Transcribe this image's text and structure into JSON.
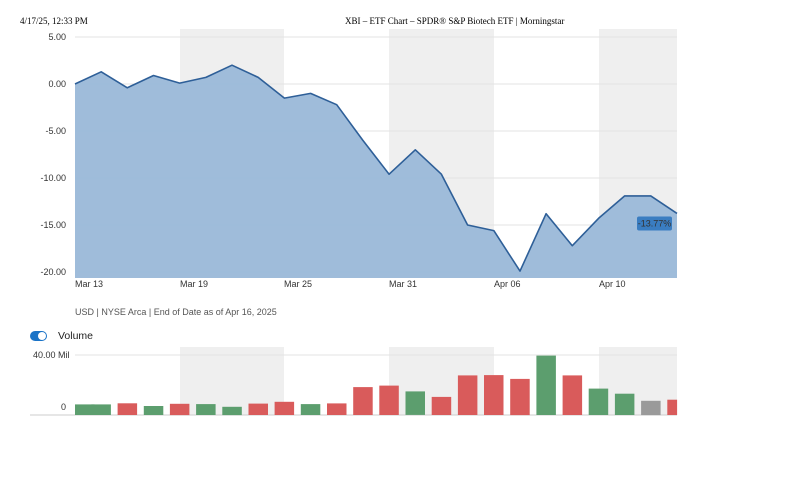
{
  "print_header": {
    "date": "4/17/25, 12:33 PM",
    "title": "XBI – ETF Chart – SPDR® S&P Biotech ETF | Morningstar"
  },
  "chart_data": [
    {
      "type": "area",
      "x_labels": [
        "Mar 13",
        "Mar 19",
        "Mar 25",
        "Mar 31",
        "Apr 06",
        "Apr 10"
      ],
      "y_ticks": [
        "5.00",
        "0.00",
        "-5.00",
        "-10.00",
        "-15.00",
        "-20.00"
      ],
      "ylim": [
        -20.0,
        5.0
      ],
      "values": [
        0.0,
        1.3,
        -0.4,
        0.9,
        0.1,
        0.7,
        2.0,
        0.7,
        -1.5,
        -1.0,
        -2.2,
        -6.0,
        -9.6,
        -7.0,
        -9.6,
        -15.0,
        -15.6,
        -19.9,
        -13.8,
        -17.2,
        -14.3,
        -11.9,
        -11.9,
        -13.77
      ],
      "end_label": "-13.77%",
      "colors": {
        "line": "#2e5f98",
        "fill": "#9ab8d8",
        "band": "#efefef",
        "grid": "#e3e3e3",
        "label_bg": "#3a7dc1"
      }
    },
    {
      "type": "bar",
      "title": "Volume",
      "y_ticks": [
        "40.00 Mil",
        "0"
      ],
      "ylim": [
        0,
        40
      ],
      "values": [
        7.1,
        7.1,
        7.8,
        6.0,
        7.5,
        7.3,
        5.5,
        7.6,
        8.8,
        7.3,
        7.7,
        18.6,
        19.6,
        15.7,
        12.1,
        26.4,
        26.6,
        24.1,
        39.6,
        26.4,
        17.6,
        14.2,
        9.5,
        10.2
      ],
      "bar_colors": [
        "green",
        "green",
        "red",
        "green",
        "red",
        "green",
        "green",
        "red",
        "red",
        "green",
        "red",
        "red",
        "red",
        "green",
        "red",
        "red",
        "red",
        "red",
        "green",
        "red",
        "green",
        "green",
        "gray",
        "red"
      ],
      "palette": {
        "green": "#5c9e6e",
        "red": "#d95b5b",
        "gray": "#9a9a9a"
      }
    }
  ],
  "footnote": "USD | NYSE Arca | End of Date as of Apr 16, 2025"
}
